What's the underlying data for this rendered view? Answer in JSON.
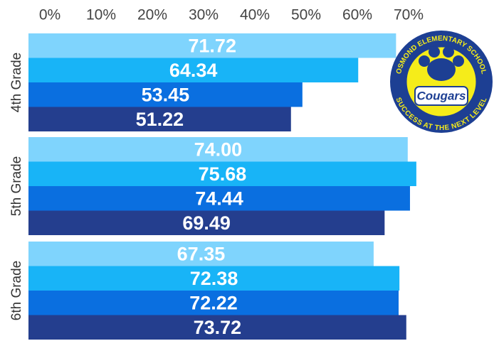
{
  "chart_data": {
    "type": "hbar",
    "categories": [
      "4th Grade",
      "5th Grade",
      "6th Grade"
    ],
    "series": [
      {
        "color": "#7fd4fd",
        "values": [
          71.72,
          74.0,
          67.35
        ],
        "value_labels": [
          "71.72",
          "74.00",
          "67.35"
        ]
      },
      {
        "color": "#18b4f7",
        "values": [
          64.34,
          75.68,
          72.38
        ],
        "value_labels": [
          "64.34",
          "75.68",
          "72.38"
        ]
      },
      {
        "color": "#0a6fe0",
        "values": [
          53.45,
          74.44,
          72.22
        ],
        "value_labels": [
          "53.45",
          "74.44",
          "72.22"
        ]
      },
      {
        "color": "#243e8e",
        "values": [
          51.22,
          69.49,
          73.72
        ],
        "value_labels": [
          "51.22",
          "69.49",
          "73.72"
        ]
      }
    ],
    "xlim": [
      0,
      90
    ],
    "xticks": [
      {
        "value": 0,
        "label": "0%"
      },
      {
        "value": 10,
        "label": "10%"
      },
      {
        "value": 20,
        "label": "20%"
      },
      {
        "value": 30,
        "label": "30%"
      },
      {
        "value": 40,
        "label": "40%"
      },
      {
        "value": 50,
        "label": "50%"
      },
      {
        "value": 60,
        "label": "60%"
      },
      {
        "value": 70,
        "label": "70%"
      }
    ],
    "logo": {
      "top": "OSMOND ELEMENTARY SCHOOL",
      "middle": "Cougars",
      "bottom": "SUCCESS AT THE NEXT LEVEL"
    }
  }
}
